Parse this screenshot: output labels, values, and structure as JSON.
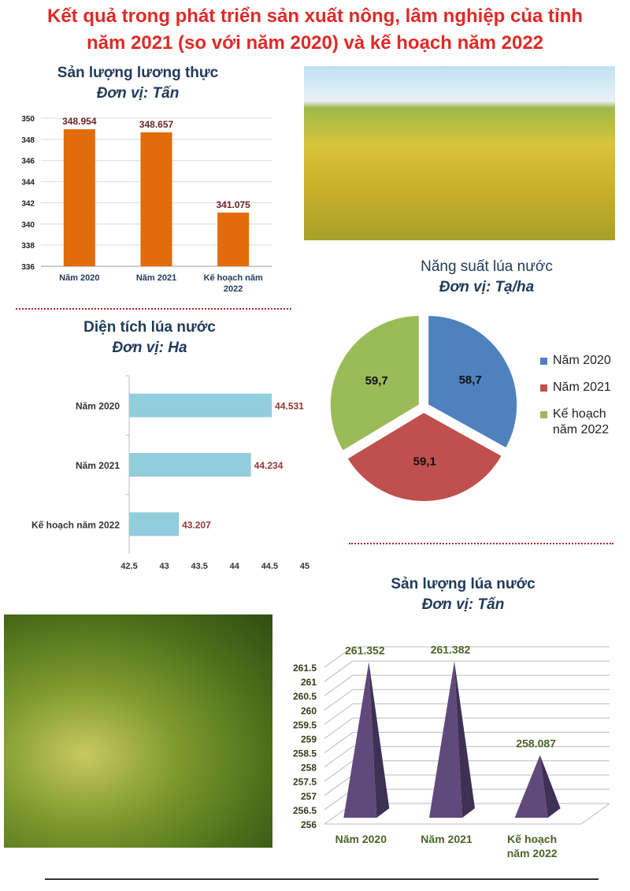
{
  "title_line1": "Kết quả trong phát triển sản xuất nông, lâm nghiệp của tỉnh",
  "title_line2": "năm 2021 (so với năm 2020) và kế hoạch năm 2022",
  "colors": {
    "title": "#e02a26",
    "bar1": "#e36c0a",
    "bar2": "#92cddc",
    "pie": [
      "#4f81bd",
      "#c0504d",
      "#9bbb59"
    ],
    "pyramid": "#604a7b"
  },
  "chart_data": [
    {
      "type": "bar",
      "title": "Sản lượng lương thực",
      "unit": "Đơn vị: Tấn",
      "categories": [
        "Năm 2020",
        "Năm 2021",
        "Kế hoạch năm 2022"
      ],
      "values": [
        348.954,
        348.657,
        341.075
      ],
      "labels": [
        "348.954",
        "348.657",
        "341.075"
      ],
      "ylim": [
        336,
        350
      ],
      "ticks": [
        "336",
        "338",
        "340",
        "342",
        "344",
        "346",
        "348",
        "350"
      ],
      "grid": true
    },
    {
      "type": "bar",
      "orientation": "horizontal",
      "title": "Diện tích lúa nước",
      "unit": "Đơn vị: Ha",
      "categories": [
        "Năm 2020",
        "Năm 2021",
        "Kế hoạch năm 2022"
      ],
      "values": [
        44.531,
        44.234,
        43.207
      ],
      "labels": [
        "44.531",
        "44.234",
        "43.207"
      ],
      "xlim": [
        42.5,
        45
      ],
      "ticks": [
        "42.5",
        "43",
        "43.5",
        "44",
        "44.5",
        "45"
      ],
      "grid": false
    },
    {
      "type": "pie",
      "title": "Năng suất lúa nước",
      "unit": "Đơn vị: Tạ/ha",
      "categories": [
        "Năm 2020",
        "Năm 2021",
        "Kế hoạch năm 2022"
      ],
      "values": [
        58.7,
        59.1,
        59.7
      ],
      "labels": [
        "58,7",
        "59,1",
        "59,7"
      ],
      "legend": "right"
    },
    {
      "type": "bar",
      "style": "3d-pyramid",
      "title": "Sản lượng lúa nước",
      "unit": "Đơn vị: Tấn",
      "categories": [
        "Năm 2020",
        "Năm 2021",
        "Kế hoạch năm 2022"
      ],
      "values": [
        261.352,
        261.382,
        258.087
      ],
      "labels": [
        "261.352",
        "261.382",
        "258.087"
      ],
      "ylim": [
        256,
        261.5
      ],
      "ticks": [
        "256",
        "256.5",
        "257",
        "257.5",
        "258",
        "258.5",
        "259",
        "259.5",
        "260",
        "260.5",
        "261",
        "261.5"
      ],
      "grid": true
    }
  ]
}
